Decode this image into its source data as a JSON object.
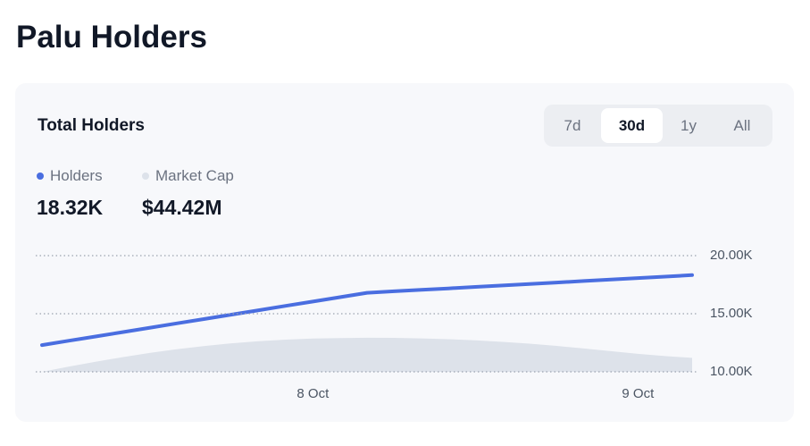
{
  "header": {
    "title": "Palu Holders"
  },
  "card": {
    "title": "Total Holders",
    "tabs": [
      "7d",
      "30d",
      "1y",
      "All"
    ],
    "active_tab": 1,
    "legend": [
      {
        "name": "Holders",
        "value": "18.32K"
      },
      {
        "name": "Market Cap",
        "value": "$44.42M"
      }
    ]
  },
  "chart_data": {
    "type": "line",
    "categories": [
      null,
      null,
      null,
      null,
      null,
      null,
      null,
      null,
      null,
      null,
      "8 Oct",
      null,
      null,
      null,
      null,
      null,
      null,
      null,
      null,
      null,
      null,
      null,
      "9 Oct",
      null,
      null
    ],
    "series": [
      {
        "name": "Market Cap",
        "type": "area",
        "color": "#dde2ea",
        "values": [
          10000,
          10450,
          10880,
          11270,
          11630,
          11950,
          12220,
          12450,
          12630,
          12770,
          12860,
          12910,
          12930,
          12920,
          12880,
          12810,
          12710,
          12580,
          12420,
          12230,
          12010,
          11780,
          11550,
          11350,
          11200
        ]
      },
      {
        "name": "Holders",
        "type": "line",
        "color": "#4a6ee0",
        "values": [
          12300,
          12675,
          13050,
          13425,
          13800,
          14175,
          14550,
          14925,
          15300,
          15675,
          16050,
          16425,
          16800,
          16927,
          17053,
          17180,
          17307,
          17433,
          17560,
          17687,
          17813,
          17940,
          18067,
          18193,
          18320
        ]
      }
    ],
    "ylim": [
      10000,
      20000
    ],
    "yticks": [
      {
        "value": 10000,
        "label": "10.00K"
      },
      {
        "value": 15000,
        "label": "15.00K"
      },
      {
        "value": 20000,
        "label": "20.00K"
      }
    ],
    "grid": true
  }
}
